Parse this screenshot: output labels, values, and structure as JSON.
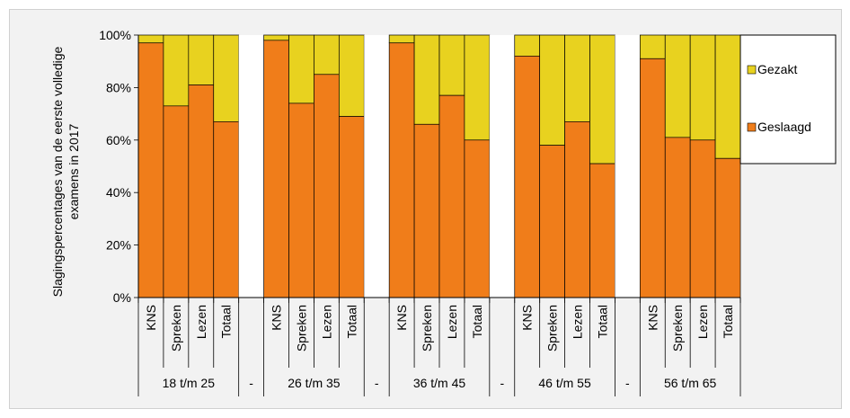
{
  "chart_data": {
    "type": "bar",
    "stacked": true,
    "percent": true,
    "ylabel": "Slagingspercentages van de eerste volledige examens in 2017",
    "ylim": [
      0,
      100
    ],
    "yticks": [
      "0%",
      "20%",
      "40%",
      "60%",
      "80%",
      "100%"
    ],
    "grid": "horizontal dashed",
    "legend_position": "right",
    "groups": [
      {
        "label": "18 t/m 25",
        "categories": [
          "KNS",
          "Spreken",
          "Lezen",
          "Totaal"
        ],
        "geslaagd": [
          97,
          73,
          81,
          67
        ]
      },
      {
        "label": "-",
        "categories": [],
        "geslaagd": []
      },
      {
        "label": "26 t/m 35",
        "categories": [
          "KNS",
          "Spreken",
          "Lezen",
          "Totaal"
        ],
        "geslaagd": [
          98,
          74,
          85,
          69
        ]
      },
      {
        "label": "-",
        "categories": [],
        "geslaagd": []
      },
      {
        "label": "36 t/m 45",
        "categories": [
          "KNS",
          "Spreken",
          "Lezen",
          "Totaal"
        ],
        "geslaagd": [
          97,
          66,
          77,
          60
        ]
      },
      {
        "label": "-",
        "categories": [],
        "geslaagd": []
      },
      {
        "label": "46 t/m 55",
        "categories": [
          "KNS",
          "Spreken",
          "Lezen",
          "Totaal"
        ],
        "geslaagd": [
          92,
          58,
          67,
          51
        ]
      },
      {
        "label": "-",
        "categories": [],
        "geslaagd": []
      },
      {
        "label": "56 t/m 65",
        "categories": [
          "KNS",
          "Spreken",
          "Lezen",
          "Totaal"
        ],
        "geslaagd": [
          91,
          61,
          60,
          53
        ]
      }
    ],
    "series": [
      {
        "name": "Gezakt",
        "color": "#e8d21f"
      },
      {
        "name": "Geslaagd",
        "color": "#f07d1a"
      }
    ]
  }
}
